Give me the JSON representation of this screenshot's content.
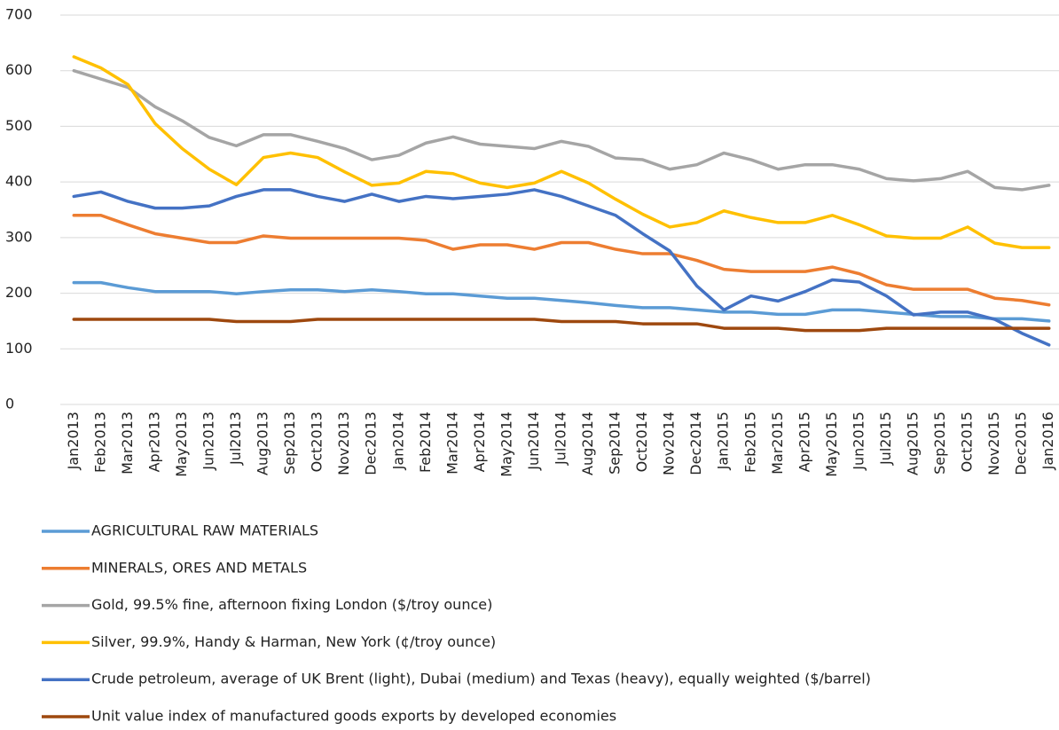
{
  "chart_data": {
    "type": "line",
    "categories": [
      "Jan2013",
      "Feb2013",
      "Mar2013",
      "Apr2013",
      "May2013",
      "Jun2013",
      "Jul2013",
      "Aug2013",
      "Sep2013",
      "Oct2013",
      "Nov2013",
      "Dec2013",
      "Jan2014",
      "Feb2014",
      "Mar2014",
      "Apr2014",
      "May2014",
      "Jun2014",
      "Jul2014",
      "Aug2014",
      "Sep2014",
      "Oct2014",
      "Nov2014",
      "Dec2014",
      "Jan2015",
      "Feb2015",
      "Mar2015",
      "Apr2015",
      "May2015",
      "Jun2015",
      "Jul2015",
      "Aug2015",
      "Sep2015",
      "Oct2015",
      "Nov2015",
      "Dec2015",
      "Jan2016"
    ],
    "series": [
      {
        "name": "AGRICULTURAL RAW MATERIALS",
        "color": "#5B9BD5",
        "values": [
          219,
          219,
          210,
          203,
          203,
          203,
          199,
          203,
          206,
          206,
          203,
          206,
          203,
          199,
          199,
          195,
          191,
          191,
          187,
          183,
          178,
          174,
          174,
          170,
          166,
          166,
          162,
          162,
          170,
          170,
          166,
          162,
          158,
          158,
          154,
          154,
          150
        ]
      },
      {
        "name": "MINERALS, ORES AND METALS",
        "color": "#ED7D31",
        "values": [
          340,
          340,
          323,
          307,
          299,
          291,
          291,
          303,
          299,
          299,
          299,
          299,
          299,
          295,
          279,
          287,
          287,
          279,
          291,
          291,
          279,
          271,
          271,
          259,
          243,
          239,
          239,
          239,
          247,
          235,
          215,
          207,
          207,
          207,
          191,
          187,
          179
        ]
      },
      {
        "name": "Gold, 99.5% fine, afternoon fixing London ($/troy ounce)",
        "color": "#A5A5A5",
        "values": [
          600,
          585,
          570,
          535,
          510,
          480,
          465,
          485,
          485,
          473,
          460,
          440,
          448,
          470,
          481,
          468,
          464,
          460,
          473,
          464,
          443,
          440,
          423,
          431,
          452,
          440,
          423,
          431,
          431,
          423,
          406,
          402,
          406,
          419,
          390,
          386,
          394
        ]
      },
      {
        "name": "Silver, 99.9%, Handy & Harman, New York (¢/troy ounce)",
        "color": "#FFC000",
        "values": [
          625,
          605,
          575,
          505,
          460,
          423,
          395,
          444,
          452,
          444,
          418,
          394,
          398,
          419,
          415,
          398,
          390,
          398,
          419,
          398,
          369,
          342,
          319,
          327,
          348,
          336,
          327,
          327,
          340,
          323,
          303,
          299,
          299,
          319,
          290,
          282,
          282
        ]
      },
      {
        "name": "Crude petroleum, average  of UK Brent (light), Dubai (medium) and Texas (heavy), equally weighted ($/barrel)",
        "color": "#4472C4",
        "values": [
          374,
          382,
          365,
          353,
          353,
          357,
          374,
          386,
          386,
          374,
          365,
          378,
          365,
          374,
          370,
          374,
          378,
          386,
          374,
          357,
          340,
          307,
          276,
          213,
          170,
          195,
          186,
          203,
          224,
          220,
          195,
          161,
          166,
          166,
          153,
          128,
          107
        ]
      },
      {
        "name": "Unit value index of manufactured goods exports by developed economies",
        "color": "#9E480E",
        "values": [
          153,
          153,
          153,
          153,
          153,
          153,
          149,
          149,
          149,
          153,
          153,
          153,
          153,
          153,
          153,
          153,
          153,
          153,
          149,
          149,
          149,
          145,
          145,
          145,
          137,
          137,
          137,
          133,
          133,
          133,
          137,
          137,
          137,
          137,
          137,
          137,
          137
        ]
      }
    ],
    "ylim": [
      0,
      700
    ],
    "yticks": [
      0,
      100,
      200,
      300,
      400,
      500,
      600,
      700
    ],
    "grid": true
  }
}
